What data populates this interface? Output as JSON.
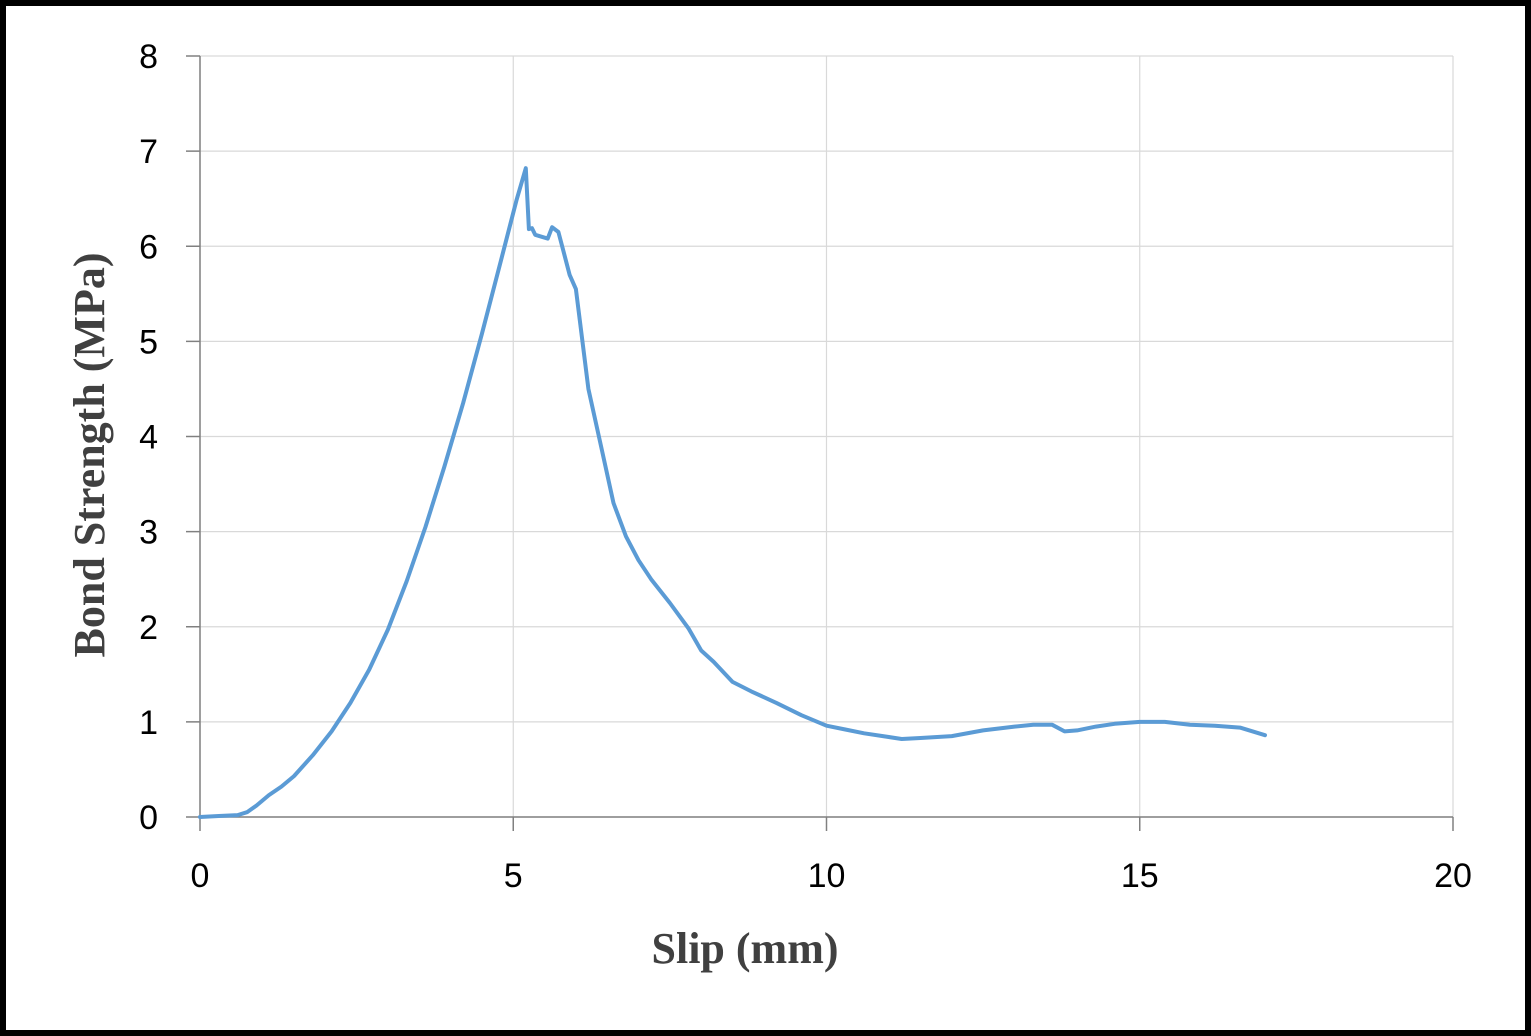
{
  "chart_data": {
    "type": "line",
    "title": "",
    "xlabel": "Slip (mm)",
    "ylabel": "Bond Strength (MPa)",
    "xlim": [
      0,
      20
    ],
    "ylim": [
      0,
      8
    ],
    "xticks": [
      0,
      5,
      10,
      15,
      20
    ],
    "yticks": [
      0,
      1,
      2,
      3,
      4,
      5,
      6,
      7,
      8
    ],
    "grid": true,
    "legend": "none",
    "colors": {
      "series": "#5b9bd5",
      "grid": "#d9d9d9",
      "axis": "#808080"
    },
    "series": [
      {
        "x": [
          0,
          0.3,
          0.6,
          0.75,
          0.9,
          1.1,
          1.3,
          1.5,
          1.8,
          2.1,
          2.4,
          2.7,
          3.0,
          3.3,
          3.6,
          3.9,
          4.2,
          4.5,
          4.8,
          5.05,
          5.2,
          5.25,
          5.3,
          5.35,
          5.45,
          5.55,
          5.62,
          5.72,
          5.8,
          5.9,
          6.0,
          6.2,
          6.4,
          6.6,
          6.8,
          7.0,
          7.2,
          7.5,
          7.8,
          8.0,
          8.2,
          8.5,
          8.8,
          9.2,
          9.6,
          10.0,
          10.3,
          10.6,
          10.9,
          11.2,
          11.5,
          12.0,
          12.5,
          13.0,
          13.3,
          13.6,
          13.8,
          14.0,
          14.3,
          14.6,
          15.0,
          15.4,
          15.8,
          16.2,
          16.6,
          17.0
        ],
        "y": [
          0,
          0.01,
          0.02,
          0.05,
          0.12,
          0.23,
          0.32,
          0.43,
          0.65,
          0.9,
          1.2,
          1.55,
          1.97,
          2.48,
          3.05,
          3.68,
          4.35,
          5.08,
          5.84,
          6.48,
          6.82,
          6.18,
          6.19,
          6.12,
          6.1,
          6.08,
          6.2,
          6.15,
          5.95,
          5.7,
          5.55,
          4.5,
          3.9,
          3.3,
          2.95,
          2.7,
          2.5,
          2.25,
          1.98,
          1.75,
          1.63,
          1.42,
          1.32,
          1.2,
          1.07,
          0.96,
          0.92,
          0.88,
          0.85,
          0.82,
          0.83,
          0.85,
          0.91,
          0.95,
          0.97,
          0.97,
          0.9,
          0.91,
          0.95,
          0.98,
          1.0,
          1.0,
          0.97,
          0.96,
          0.94,
          0.86
        ]
      }
    ]
  }
}
